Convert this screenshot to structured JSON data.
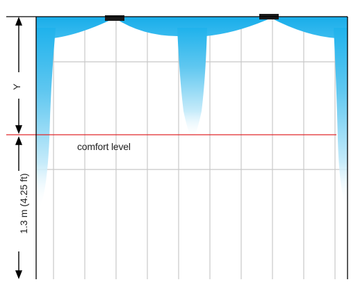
{
  "labels": {
    "comfort_level": "comfort level",
    "upper_dimension": "Y",
    "lower_dimension": "1.3 m (4.25 ft)"
  },
  "colors": {
    "jet_fill": "#1fb2ec",
    "comfort_line": "#e0272b",
    "grid": "#c8c8c8",
    "frame": "#000000",
    "diffuser": "#1a1a1a"
  },
  "icons": {
    "dimension_arrows": "arrow-up-down-icon",
    "diffuser": "ceiling-diffuser-icon"
  }
}
